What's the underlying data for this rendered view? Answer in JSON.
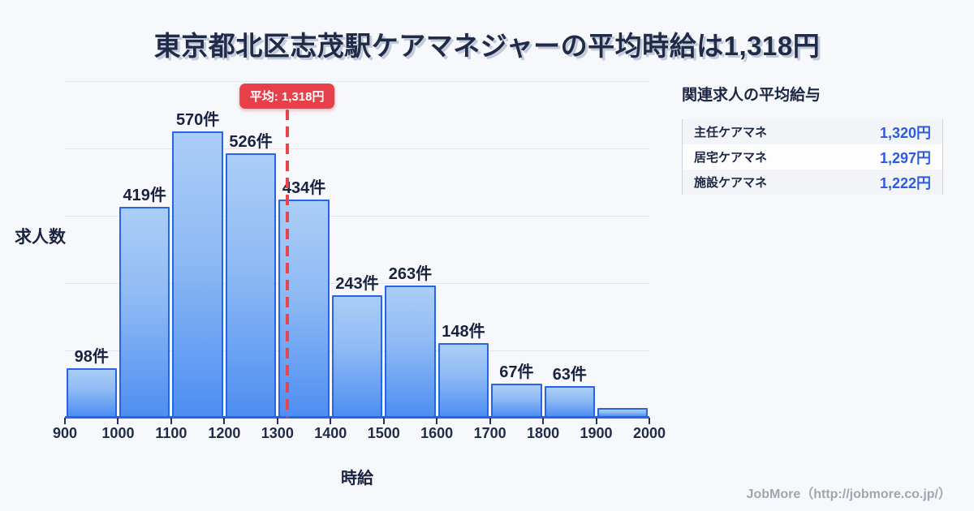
{
  "page": {
    "title": "東京都北区志茂駅ケアマネジャーの平均時給は1,318円",
    "footer_credit": "JobMore（http://jobmore.co.jp/）"
  },
  "colors": {
    "background": "#f7f8fb",
    "title_text": "#1f2b47",
    "bar_fill_top": "#abcef7",
    "bar_fill_bottom": "#4e8ef2",
    "bar_border": "#2765e8",
    "average_red": "#e8404a",
    "salary_value_blue": "#2b5be0",
    "gridline": "#e2e8f2",
    "footer_gray": "#a0a6b0"
  },
  "chart_data": {
    "type": "bar",
    "title": "東京都北区志茂駅ケアマネジャーの平均時給は1,318円",
    "xlabel": "時給",
    "ylabel": "求人数",
    "grid": true,
    "legend": false,
    "xlim": [
      900,
      2000
    ],
    "ylim": [
      0,
      670
    ],
    "bin_edges": [
      900,
      1000,
      1100,
      1200,
      1300,
      1400,
      1500,
      1600,
      1700,
      1800,
      1900,
      2000
    ],
    "x_tick_labels": [
      "900",
      "1000",
      "1100",
      "1200",
      "1300",
      "1400",
      "1500",
      "1600",
      "1700",
      "1800",
      "1900",
      "2000"
    ],
    "values": [
      98,
      419,
      570,
      526,
      434,
      243,
      263,
      148,
      67,
      63,
      20
    ],
    "bar_labels": [
      "98件",
      "419件",
      "570件",
      "526件",
      "434件",
      "243件",
      "263件",
      "148件",
      "67件",
      "63件",
      ""
    ],
    "average": {
      "value": 1318,
      "label": "平均: 1,318円"
    }
  },
  "related_salaries": {
    "header": "関連求人の平均給与",
    "rows": [
      {
        "label": "主任ケアマネ",
        "value": "1,320円"
      },
      {
        "label": "居宅ケアマネ",
        "value": "1,297円"
      },
      {
        "label": "施設ケアマネ",
        "value": "1,222円"
      }
    ]
  }
}
